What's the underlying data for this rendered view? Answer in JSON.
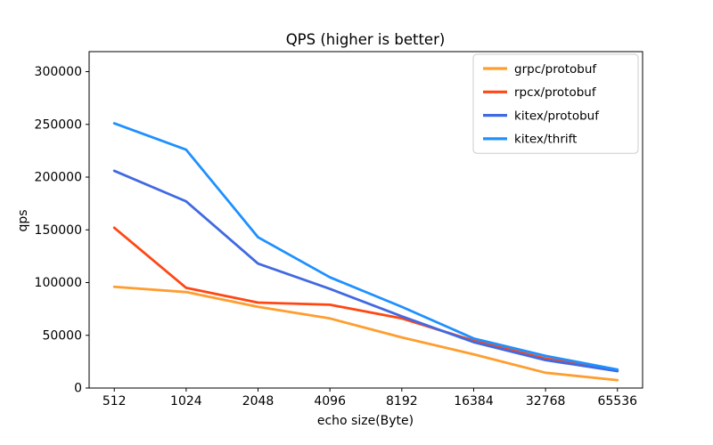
{
  "chart_data": {
    "type": "line",
    "title": "QPS (higher is better)",
    "xlabel": "echo size(Byte)",
    "ylabel": "qps",
    "categories": [
      "512",
      "1024",
      "2048",
      "4096",
      "8192",
      "16384",
      "32768",
      "65536"
    ],
    "yticks": [
      0,
      50000,
      100000,
      150000,
      200000,
      250000,
      300000
    ],
    "ylim": [
      0,
      319000
    ],
    "grid": false,
    "legend_position": "upper right",
    "axis_color": "#000000",
    "legend_border_color": "#cccccc",
    "series": [
      {
        "name": "grpc/protobuf",
        "color": "#FF9D2E",
        "values": [
          96000,
          91000,
          77000,
          66000,
          48000,
          32000,
          14500,
          7500
        ]
      },
      {
        "name": "rpcx/protobuf",
        "color": "#FF4714",
        "values": [
          152000,
          95000,
          81000,
          79000,
          66000,
          45000,
          28000,
          16500
        ]
      },
      {
        "name": "kitex/protobuf",
        "color": "#4169E1",
        "values": [
          206000,
          177000,
          118000,
          94000,
          68000,
          43500,
          26500,
          16000
        ]
      },
      {
        "name": "kitex/thrift",
        "color": "#1E90FF",
        "values": [
          251000,
          226000,
          143000,
          105000,
          77000,
          47000,
          30500,
          17500
        ]
      }
    ]
  }
}
